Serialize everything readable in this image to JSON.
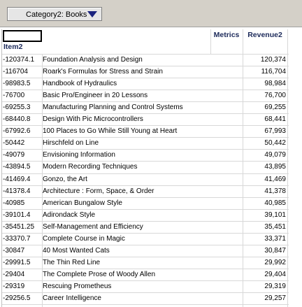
{
  "toolbar": {
    "dropdown": "Category2: Books"
  },
  "table": {
    "header": {
      "metrics": "Metrics",
      "revenue": "Revenue2",
      "row_label": "Item2"
    },
    "rows": [
      [
        "-120374.1",
        "Foundation Analysis and Design",
        "120,374"
      ],
      [
        "-116704",
        "Roark's Formulas for Stress and Strain",
        "116,704"
      ],
      [
        "-98983.5",
        "Handbook of Hydraulics",
        "98,984"
      ],
      [
        "-76700",
        "Basic Pro/Engineer in 20 Lessons",
        "76,700"
      ],
      [
        "-69255.3",
        "Manufacturing Planning and Control Systems",
        "69,255"
      ],
      [
        "-68440.8",
        "Design With Pic Microcontrollers",
        "68,441"
      ],
      [
        "-67992.6",
        "100 Places to Go While Still Young at Heart",
        "67,993"
      ],
      [
        "-50442",
        "Hirschfeld on Line",
        "50,442"
      ],
      [
        "-49079",
        "Envisioning Information",
        "49,079"
      ],
      [
        "-43894.5",
        "Modern Recording Techniques",
        "43,895"
      ],
      [
        "-41469.4",
        "Gonzo, the Art",
        "41,469"
      ],
      [
        "-41378.4",
        "Architecture : Form, Space, & Order",
        "41,378"
      ],
      [
        "-40985",
        "American Bungalow Style",
        "40,985"
      ],
      [
        "-39101.4",
        "Adirondack Style",
        "39,101"
      ],
      [
        "-35451.25",
        "Self-Management and Efficiency",
        "35,451"
      ],
      [
        "-33370.7",
        "Complete Course in Magic",
        "33,371"
      ],
      [
        "-30847",
        "40 Most Wanted Cats",
        "30,847"
      ],
      [
        "-29991.5",
        "The Thin Red Line",
        "29,992"
      ],
      [
        "-29404",
        "The Complete Prose of Woody Allen",
        "29,404"
      ],
      [
        "-29319",
        "Rescuing Prometheus",
        "29,319"
      ],
      [
        "-29256.5",
        "Career Intelligence",
        "29,257"
      ]
    ]
  }
}
